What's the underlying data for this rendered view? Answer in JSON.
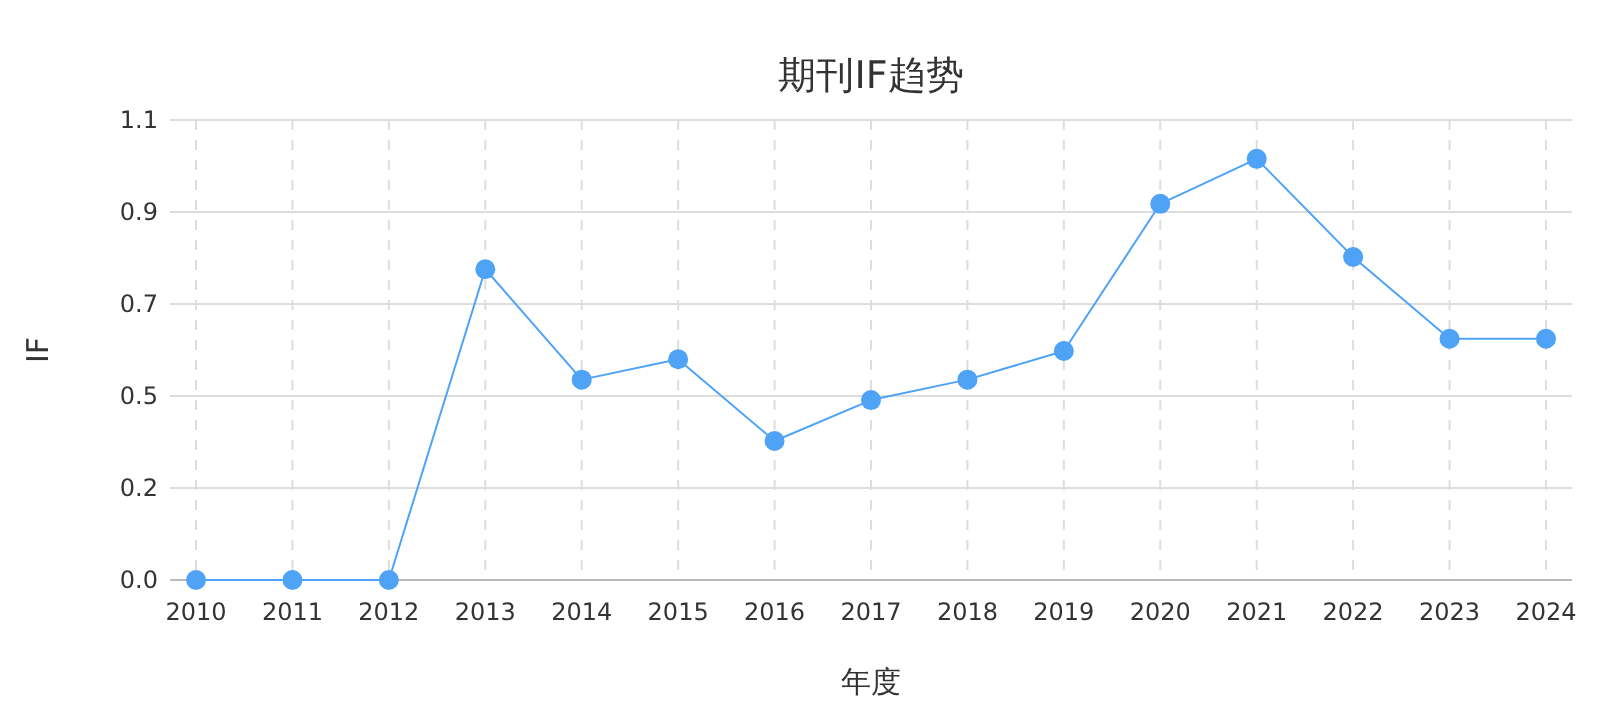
{
  "chart_data": {
    "type": "line",
    "title": "期刊IF趋势",
    "xlabel": "年度",
    "ylabel": "IF",
    "categories": [
      "2010",
      "2011",
      "2012",
      "2013",
      "2014",
      "2015",
      "2016",
      "2017",
      "2018",
      "2019",
      "2020",
      "2021",
      "2022",
      "2023",
      "2024"
    ],
    "series": [
      {
        "color": "#4fa3f7",
        "values": [
          0,
          0,
          0,
          0.76,
          0.49,
          0.54,
          0.34,
          0.44,
          0.49,
          0.56,
          0.92,
          1.03,
          0.79,
          0.59,
          0.59
        ]
      }
    ],
    "ylim": [
      0,
      1.125
    ],
    "yticks": [
      {
        "value": 0,
        "label": "0.0"
      },
      {
        "value": 0.225,
        "label": "0.2"
      },
      {
        "value": 0.45,
        "label": "0.5"
      },
      {
        "value": 0.675,
        "label": "0.7"
      },
      {
        "value": 0.9,
        "label": "0.9"
      },
      {
        "value": 1.125,
        "label": "1.1"
      }
    ],
    "grid": true,
    "marker": "circle",
    "line_style": "solid"
  }
}
